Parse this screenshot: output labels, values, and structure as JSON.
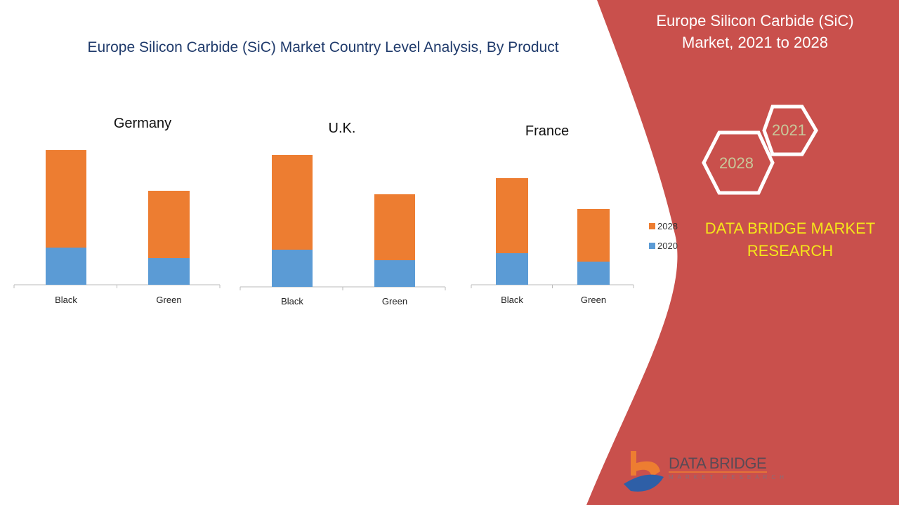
{
  "title": "Europe Silicon Carbide (SiC) Market Country Level Analysis, By Product",
  "side_panel": {
    "title_line1": "Europe Silicon Carbide (SiC)",
    "title_line2": "Market, 2021 to 2028",
    "hex_years": [
      "2021",
      "2028"
    ],
    "brand_line1": "DATA BRIDGE MARKET",
    "brand_line2": "RESEARCH",
    "logo_text": "DATA BRIDGE",
    "logo_sub": "MARKET RESEARCH",
    "panel_color": "#c9504c"
  },
  "legend": [
    {
      "label": "2028",
      "color": "#ed7d31"
    },
    {
      "label": "2020",
      "color": "#5b9bd5"
    }
  ],
  "chart_data": [
    {
      "type": "bar",
      "stacked": true,
      "title": "Germany",
      "categories": [
        "Black",
        "Green"
      ],
      "series": [
        {
          "name": "2020",
          "values": [
            26.5,
            19
          ]
        },
        {
          "name": "2028",
          "values": [
            69.5,
            48
          ]
        }
      ]
    },
    {
      "type": "bar",
      "stacked": true,
      "title": "U.K.",
      "categories": [
        "Black",
        "Green"
      ],
      "series": [
        {
          "name": "2020",
          "values": [
            26.5,
            19
          ]
        },
        {
          "name": "2028",
          "values": [
            67.5,
            47
          ]
        }
      ]
    },
    {
      "type": "bar",
      "stacked": true,
      "title": "France",
      "categories": [
        "Black",
        "Green"
      ],
      "series": [
        {
          "name": "2020",
          "values": [
            22.5,
            16.5
          ]
        },
        {
          "name": "2028",
          "values": [
            53.5,
            37.5
          ]
        }
      ]
    }
  ]
}
